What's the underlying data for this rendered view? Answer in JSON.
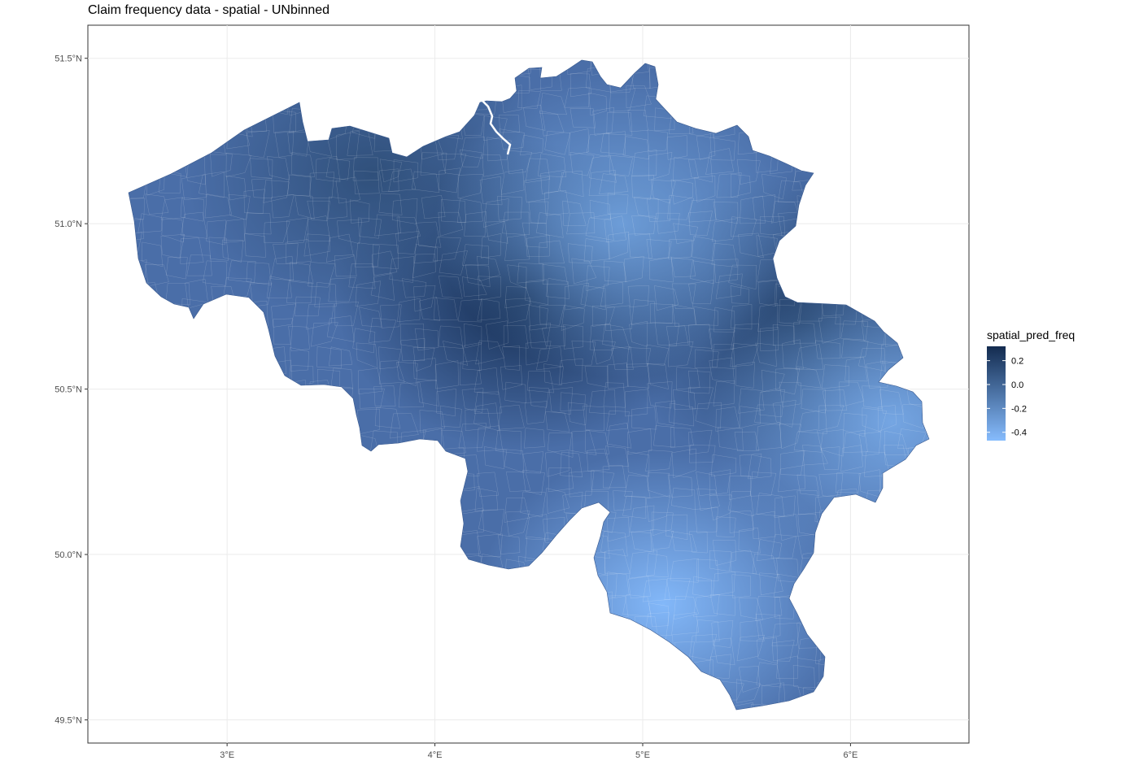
{
  "title": "Claim frequency data - spatial - UNbinned",
  "chart_data": {
    "type": "choropleth",
    "title": "Claim frequency data - spatial - UNbinned",
    "xlabel": "",
    "ylabel": "",
    "x_ticks": [
      "3°E",
      "4°E",
      "5°E",
      "6°E"
    ],
    "x_tick_values": [
      3,
      4,
      5,
      6
    ],
    "y_ticks": [
      "51.5°N",
      "51.0°N",
      "50.5°N",
      "50.0°N",
      "49.5°N"
    ],
    "y_tick_values": [
      51.5,
      51.0,
      50.5,
      50.0,
      49.5
    ],
    "xlim": [
      2.33,
      6.57
    ],
    "ylim": [
      49.43,
      51.6
    ],
    "grid": true,
    "region": "Belgium (municipalities)",
    "fill_variable": "spatial_pred_freq",
    "legend": {
      "title": "spatial_pred_freq",
      "position": "right",
      "ticks": [
        "0.2",
        "0.0",
        "-0.2",
        "-0.4"
      ],
      "tick_values": [
        0.2,
        0.0,
        -0.2,
        -0.4
      ],
      "range": [
        -0.47,
        0.32
      ],
      "color_low": "#86bcfd",
      "color_high": "#132b4f"
    },
    "hotspots": [
      {
        "lon": 4.42,
        "lat": 50.78,
        "value": 0.32
      },
      {
        "lon": 5.78,
        "lat": 50.7,
        "value": 0.2
      },
      {
        "lon": 3.7,
        "lat": 51.15,
        "value": 0.12
      },
      {
        "lon": 4.9,
        "lat": 51.0,
        "value": -0.3
      },
      {
        "lon": 5.1,
        "lat": 49.85,
        "value": -0.45
      },
      {
        "lon": 6.2,
        "lat": 50.4,
        "value": -0.35
      }
    ]
  }
}
